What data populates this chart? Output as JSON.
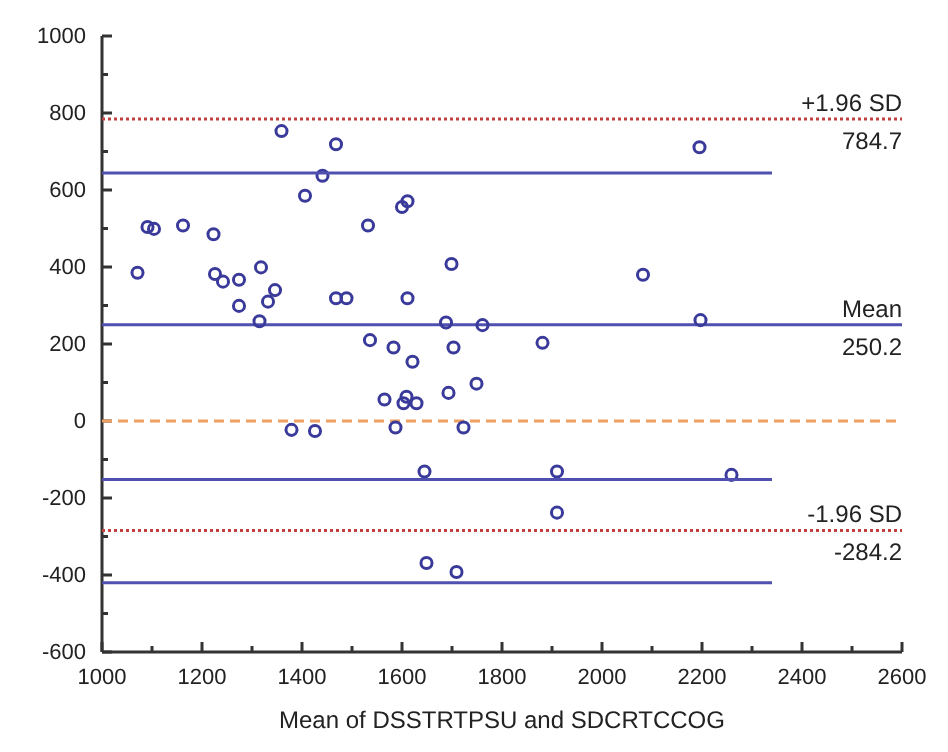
{
  "chart_data": {
    "type": "scatter",
    "xlabel": "Mean of DSSTRTPSU and SDCRTCCOG",
    "xlim": [
      1000,
      2600
    ],
    "ylim": [
      -600,
      1000
    ],
    "xticks": [
      1000,
      {
        "value": 1100,
        "label": null
      },
      1200,
      {
        "value": 1300,
        "label": null
      },
      1400,
      {
        "value": 1500,
        "label": null
      },
      1600,
      {
        "value": 1700,
        "label": null
      },
      1800,
      {
        "value": 1900,
        "label": null
      },
      2000,
      {
        "value": 2100,
        "label": null
      },
      2200,
      {
        "value": 2300,
        "label": null
      },
      2400,
      {
        "value": 2500,
        "label": null
      },
      2600
    ],
    "yticks": [
      -600,
      {
        "value": -500,
        "label": null
      },
      -400,
      {
        "value": -300,
        "label": null
      },
      -200,
      {
        "value": -100,
        "label": null
      },
      0,
      {
        "value": 100,
        "label": null
      },
      200,
      {
        "value": 300,
        "label": null
      },
      400,
      {
        "value": 500,
        "label": null
      },
      600,
      {
        "value": 700,
        "label": null
      },
      800,
      {
        "value": 900,
        "label": null
      },
      1000
    ],
    "grid": false,
    "series": [
      {
        "color": "#3a3a9a",
        "marker": "circle",
        "x": [
          1071,
          1091,
          1104,
          1162,
          1223,
          1226,
          1242,
          1274,
          1274,
          1318,
          1315,
          1332,
          1346,
          1359,
          1406,
          1441,
          1468,
          1468,
          1489,
          1532,
          1536,
          1583,
          1600,
          1611,
          1611,
          1621,
          1688,
          1699,
          1703,
          1761,
          1749,
          1693,
          1565,
          1609,
          1603,
          1629,
          1379,
          1426,
          1587,
          1723,
          1645,
          1649,
          1709,
          2195,
          2082,
          2197,
          1881,
          1910,
          2259,
          1910
        ],
        "values": [
          385,
          504,
          499,
          508,
          485,
          382,
          362,
          367,
          299,
          399,
          259,
          310,
          340,
          753,
          585,
          637,
          719,
          319,
          319,
          508,
          210,
          191,
          556,
          571,
          319,
          154,
          256,
          408,
          191,
          249,
          97,
          73,
          56,
          63,
          46,
          46,
          -23,
          -26,
          -17,
          -17,
          -131,
          -369,
          -392,
          711,
          380,
          262,
          203,
          -131,
          -140,
          -238
        ]
      },
      {
        "type": "line",
        "marker": "none",
        "color": "#5050b0",
        "x": [
          1000,
          2340
        ],
        "values": [
          644,
          644
        ]
      },
      {
        "type": "line",
        "marker": "none",
        "color": "#5050b0",
        "x": [
          1000,
          2340
        ],
        "values": [
          -152,
          -152
        ]
      },
      {
        "type": "line",
        "marker": "none",
        "color": "#5050b0",
        "x": [
          1000,
          2340
        ],
        "values": [
          -420,
          -420
        ]
      }
    ],
    "ref_lines": [
      {
        "axis": "y",
        "value": 784.7,
        "label": "+1.96 SD",
        "color": "#c04040",
        "line_style": "dotted"
      },
      {
        "axis": "y",
        "value": 250.2,
        "label": "Mean",
        "color": "#5050b0",
        "line_style": "solid"
      },
      {
        "axis": "y",
        "value": 0,
        "color": "#f0a060",
        "line_style": "dashed"
      },
      {
        "axis": "y",
        "value": -284.2,
        "label": "-1.96 SD",
        "color": "#c04040",
        "line_style": "dotted"
      }
    ],
    "annotations": [
      {
        "text": "784.7",
        "y": 784.7
      },
      {
        "text": "250.2",
        "y": 250.2
      },
      {
        "text": "-284.2",
        "y": -284.2
      }
    ]
  }
}
